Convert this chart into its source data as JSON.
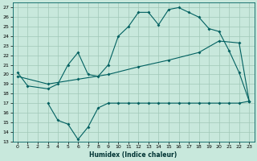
{
  "xlabel": "Humidex (Indice chaleur)",
  "bg_color": "#c8e8dc",
  "grid_color": "#a0c8b8",
  "line_color": "#006060",
  "xlim": [
    -0.5,
    23.5
  ],
  "ylim": [
    13,
    27.5
  ],
  "xticks": [
    0,
    1,
    2,
    3,
    4,
    5,
    6,
    7,
    8,
    9,
    10,
    11,
    12,
    13,
    14,
    15,
    16,
    17,
    18,
    19,
    20,
    21,
    22,
    23
  ],
  "yticks": [
    13,
    14,
    15,
    16,
    17,
    18,
    19,
    20,
    21,
    22,
    23,
    24,
    25,
    26,
    27
  ],
  "curve1_x": [
    0,
    1,
    3,
    4,
    5,
    6,
    7,
    8,
    9,
    10,
    11,
    12,
    13,
    14,
    15,
    16,
    17,
    18,
    19,
    20,
    21,
    22,
    23
  ],
  "curve1_y": [
    20.2,
    18.8,
    18.5,
    19.0,
    21.0,
    22.3,
    20.0,
    19.8,
    21.0,
    24.0,
    25.0,
    26.5,
    26.5,
    25.2,
    26.8,
    27.0,
    26.5,
    26.0,
    24.8,
    24.5,
    22.5,
    20.2,
    17.2
  ],
  "curve2_x": [
    0,
    3,
    6,
    9,
    12,
    15,
    18,
    20,
    22,
    23
  ],
  "curve2_y": [
    19.8,
    19.0,
    19.5,
    20.0,
    20.8,
    21.5,
    22.3,
    23.5,
    23.3,
    17.2
  ],
  "curve3_x": [
    3,
    4,
    5,
    6,
    7,
    8,
    9,
    10,
    11,
    12,
    13,
    14,
    15,
    16,
    17,
    18,
    19,
    20,
    21,
    22,
    23
  ],
  "curve3_y": [
    17.0,
    15.2,
    14.8,
    13.2,
    14.5,
    16.5,
    17.0,
    17.0,
    17.0,
    17.0,
    17.0,
    17.0,
    17.0,
    17.0,
    17.0,
    17.0,
    17.0,
    17.0,
    17.0,
    17.0,
    17.2
  ]
}
